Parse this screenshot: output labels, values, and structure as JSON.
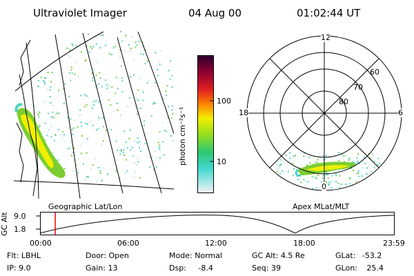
{
  "header": {
    "instrument": "Ultraviolet Imager",
    "date": "04 Aug 00",
    "time": "01:02:44 UT"
  },
  "colorbar": {
    "label": "photon cm⁻²s⁻¹",
    "ticks": [
      "100",
      "10"
    ]
  },
  "map_panel": {
    "label": "Geographic Lat/Lon"
  },
  "polar_panel": {
    "label": "Apex MLat/MLT",
    "mlt_labels": {
      "top": "12",
      "left": "18",
      "right": "6",
      "bottom": "0"
    },
    "lat_labels": [
      "60",
      "70",
      "80"
    ]
  },
  "altitude_plot": {
    "ylabel": "GC Alt",
    "yticks": [
      "9.0",
      "1.8"
    ],
    "xticks": [
      "00:00",
      "06:00",
      "12:00",
      "18:00",
      "23:59"
    ]
  },
  "params": {
    "flt": {
      "label": "Flt:",
      "value": "LBHL"
    },
    "ip": {
      "label": "IP:",
      "value": "9.0"
    },
    "door": {
      "label": "Door:",
      "value": "Open"
    },
    "gain": {
      "label": "Gain:",
      "value": "13"
    },
    "mode": {
      "label": "Mode:",
      "value": "Normal"
    },
    "dsp": {
      "label": "Dsp:",
      "value": "-8.4"
    },
    "gcalt": {
      "label": "GC Alt:",
      "value": "4.5 Re"
    },
    "seq": {
      "label": "Seq:",
      "value": "39"
    },
    "glat": {
      "label": "GLat:",
      "value": "-53.2"
    },
    "glon": {
      "label": "GLon:",
      "value": "25.4"
    }
  },
  "colors": {
    "aurora_bright": "#f0f000",
    "aurora_mid": "#7ccd32",
    "aurora_low": "#4fd0c0",
    "marker": "#dd0000"
  }
}
